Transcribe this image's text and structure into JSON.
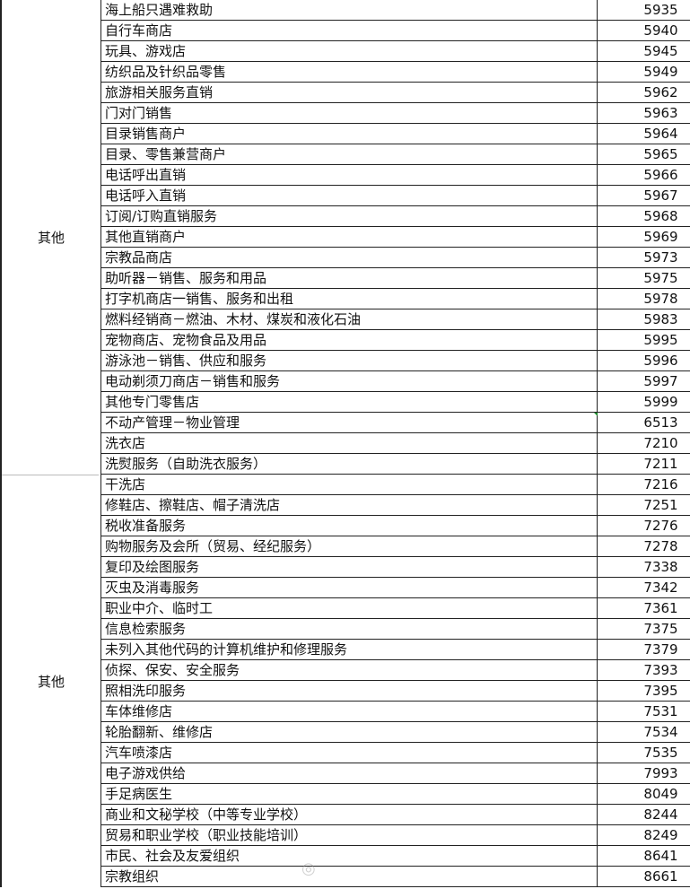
{
  "groups": [
    {
      "category": "其他",
      "rows": [
        {
          "name": "海上船只遇难救助",
          "code": "5935"
        },
        {
          "name": "自行车商店",
          "code": "5940"
        },
        {
          "name": "玩具、游戏店",
          "code": "5945"
        },
        {
          "name": "纺织品及针织品零售",
          "code": "5949"
        },
        {
          "name": "旅游相关服务直销",
          "code": "5962"
        },
        {
          "name": "门对门销售",
          "code": "5963"
        },
        {
          "name": "目录销售商户",
          "code": "5964"
        },
        {
          "name": "目录、零售兼营商户",
          "code": "5965"
        },
        {
          "name": "电话呼出直销",
          "code": "5966"
        },
        {
          "name": "电话呼入直销",
          "code": "5967"
        },
        {
          "name": "订阅/订购直销服务",
          "code": "5968"
        },
        {
          "name": "其他直销商户",
          "code": "5969"
        },
        {
          "name": "宗教品商店",
          "code": "5973"
        },
        {
          "name": "助听器－销售、服务和用品",
          "code": "5975"
        },
        {
          "name": "打字机商店一销售、服务和出租",
          "code": "5978"
        },
        {
          "name": "燃料经销商－燃油、木材、煤炭和液化石油",
          "code": "5983"
        },
        {
          "name": "宠物商店、宠物食品及用品",
          "code": "5995"
        },
        {
          "name": "游泳池－销售、供应和服务",
          "code": "5996"
        },
        {
          "name": "电动剃须刀商店－销售和服务",
          "code": "5997"
        },
        {
          "name": "其他专门零售店",
          "code": "5999"
        },
        {
          "name": "不动产管理－物业管理",
          "code": "6513"
        },
        {
          "name": "洗衣店",
          "code": "7210"
        },
        {
          "name": "洗熨服务（自助洗衣服务）",
          "code": "7211"
        }
      ]
    },
    {
      "category": "其他",
      "rows": [
        {
          "name": "干洗店",
          "code": "7216"
        },
        {
          "name": "修鞋店、擦鞋店、帽子清洗店",
          "code": "7251"
        },
        {
          "name": "税收准备服务",
          "code": "7276"
        },
        {
          "name": "购物服务及会所（贸易、经纪服务）",
          "code": "7278"
        },
        {
          "name": "复印及绘图服务",
          "code": "7338"
        },
        {
          "name": "灭虫及消毒服务",
          "code": "7342"
        },
        {
          "name": "职业中介、临时工",
          "code": "7361"
        },
        {
          "name": "信息检索服务",
          "code": "7375"
        },
        {
          "name": "未列入其他代码的计算机维护和修理服务",
          "code": "7379"
        },
        {
          "name": "侦探、保安、安全服务",
          "code": "7393"
        },
        {
          "name": "照相洗印服务",
          "code": "7395"
        },
        {
          "name": "车体维修店",
          "code": "7531"
        },
        {
          "name": "轮胎翻新、维修店",
          "code": "7534"
        },
        {
          "name": "汽车喷漆店",
          "code": "7535"
        },
        {
          "name": "电子游戏供给",
          "code": "7993"
        },
        {
          "name": "手足病医生",
          "code": "8049"
        },
        {
          "name": "商业和文秘学校（中等专业学校）",
          "code": "8244"
        },
        {
          "name": "贸易和职业学校（职业技能培训）",
          "code": "8249"
        },
        {
          "name": "市民、社会及友爱组织",
          "code": "8641"
        },
        {
          "name": "宗教组织",
          "code": "8661"
        }
      ]
    }
  ],
  "watermark": "微博"
}
